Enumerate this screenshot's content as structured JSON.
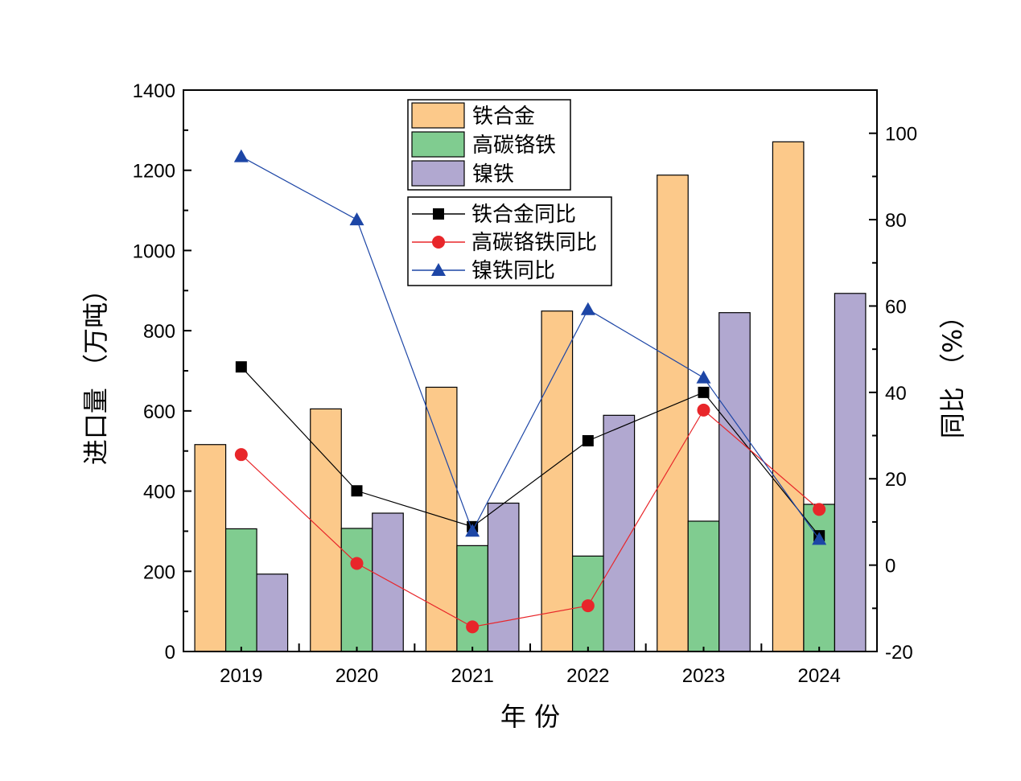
{
  "chart_data": {
    "type": "bar+line",
    "categories": [
      "2019",
      "2020",
      "2021",
      "2022",
      "2023",
      "2024"
    ],
    "bar_series": [
      {
        "name": "铁合金",
        "color": "#fcc98a",
        "values": [
          516,
          605,
          659,
          849,
          1188,
          1271
        ]
      },
      {
        "name": "高碳铬铁",
        "color": "#80cc90",
        "values": [
          306,
          307,
          264,
          238,
          325,
          367
        ]
      },
      {
        "name": "镍铁",
        "color": "#b1a8d0",
        "values": [
          193,
          345,
          370,
          589,
          845,
          893
        ]
      }
    ],
    "line_series": [
      {
        "name": "铁合金同比",
        "color": "#000000",
        "marker": "square",
        "values": [
          45.9,
          17.2,
          8.9,
          28.8,
          40.0,
          6.8
        ]
      },
      {
        "name": "高碳铬铁同比",
        "color": "#e8262a",
        "marker": "circle",
        "values": [
          25.6,
          0.4,
          -14.3,
          -9.4,
          35.9,
          12.9
        ]
      },
      {
        "name": "镍铁同比",
        "color": "#1d46a6",
        "marker": "triangle",
        "values": [
          94.6,
          80.0,
          7.9,
          59.2,
          43.4,
          6.0
        ]
      }
    ],
    "xlabel": "年 份",
    "ylabel_left": "进口量 （万吨）",
    "ylabel_right": "同比 （%）",
    "ylim_left": [
      0,
      1400
    ],
    "yticks_left": [
      "0",
      "200",
      "400",
      "600",
      "800",
      "1000",
      "1200",
      "1400"
    ],
    "ylim_right": [
      -20,
      110
    ],
    "yticks_right": [
      "-20",
      "0",
      "20",
      "40",
      "60",
      "80",
      "100"
    ],
    "legend_bars_position": "top-center",
    "legend_lines_position": "center-right"
  }
}
